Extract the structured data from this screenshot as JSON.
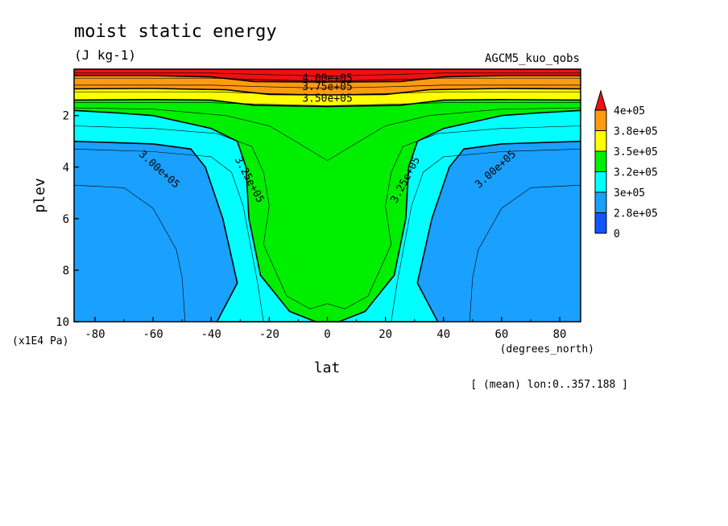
{
  "chart_data": {
    "type": "heatmap",
    "title": "moist static energy",
    "subtitle": "(J kg-1)",
    "experiment": "AGCM5_kuo_qobs",
    "xlabel": "lat",
    "x_unit": "(degrees_north)",
    "ylabel": "plev",
    "y_unit": "(x1E4 Pa)",
    "footnote": "[ (mean) lon:0..357.188 ]",
    "xlim": [
      -87.2,
      87.2
    ],
    "ylim": [
      10,
      0.2
    ],
    "x_ticks": [
      "-80",
      "-60",
      "-40",
      "-20",
      "0",
      "20",
      "40",
      "60",
      "80"
    ],
    "y_ticks": [
      "2",
      "4",
      "6",
      "8",
      "10"
    ],
    "colorbar": {
      "labels": [
        "4e+05",
        "3.8e+05",
        "3.5e+05",
        "3.2e+05",
        "3e+05",
        "2.8e+05",
        "0"
      ],
      "colors": [
        "#ee1111",
        "#ff9a11",
        "#ffff00",
        "#00ee00",
        "#00ffff",
        "#1aa0ff",
        "#1155ff"
      ]
    },
    "contour_labels": [
      {
        "text": "4.00e+05",
        "lat": 0,
        "plev": 0.58
      },
      {
        "text": "3.75e+05",
        "lat": 0,
        "plev": 0.9
      },
      {
        "text": "3.50e+05",
        "lat": 0,
        "plev": 1.35
      },
      {
        "text": "3.25e+05",
        "lat": -27,
        "plev": 4.5
      },
      {
        "text": "3.25e+05",
        "lat": 27,
        "plev": 4.5
      },
      {
        "text": "3.00e+05",
        "lat": -58,
        "plev": 4.1
      },
      {
        "text": "3.00e+05",
        "lat": 58,
        "plev": 4.1
      }
    ],
    "bands_boundaries_lat_abs": {
      "green_cyan": [
        [
          0,
          10
        ],
        [
          4,
          10
        ],
        [
          13,
          9.6
        ],
        [
          23,
          8.2
        ],
        [
          27,
          6
        ],
        [
          28,
          4
        ],
        [
          31,
          3
        ],
        [
          40,
          2.5
        ],
        [
          52,
          2.2
        ],
        [
          60,
          2.0
        ],
        [
          72,
          1.9
        ],
        [
          87.2,
          1.8
        ]
      ],
      "cyan_blue": [
        [
          0,
          10
        ],
        [
          38,
          10
        ],
        [
          31,
          8.5
        ],
        [
          36,
          6
        ],
        [
          42,
          4
        ],
        [
          47,
          3.3
        ],
        [
          60,
          3.1
        ],
        [
          87.2,
          3.0
        ]
      ],
      "yellow_green": [
        [
          0,
          1.65
        ],
        [
          25,
          1.6
        ],
        [
          40,
          1.4
        ],
        [
          60,
          1.38
        ],
        [
          87.2,
          1.4
        ]
      ],
      "orange_yellow": [
        [
          0,
          1.2
        ],
        [
          20,
          1.18
        ],
        [
          35,
          1.0
        ],
        [
          60,
          0.95
        ],
        [
          87.2,
          0.96
        ]
      ],
      "red_orange": [
        [
          0,
          0.7
        ],
        [
          25,
          0.68
        ],
        [
          40,
          0.5
        ],
        [
          60,
          0.45
        ],
        [
          87.2,
          0.45
        ]
      ]
    }
  }
}
